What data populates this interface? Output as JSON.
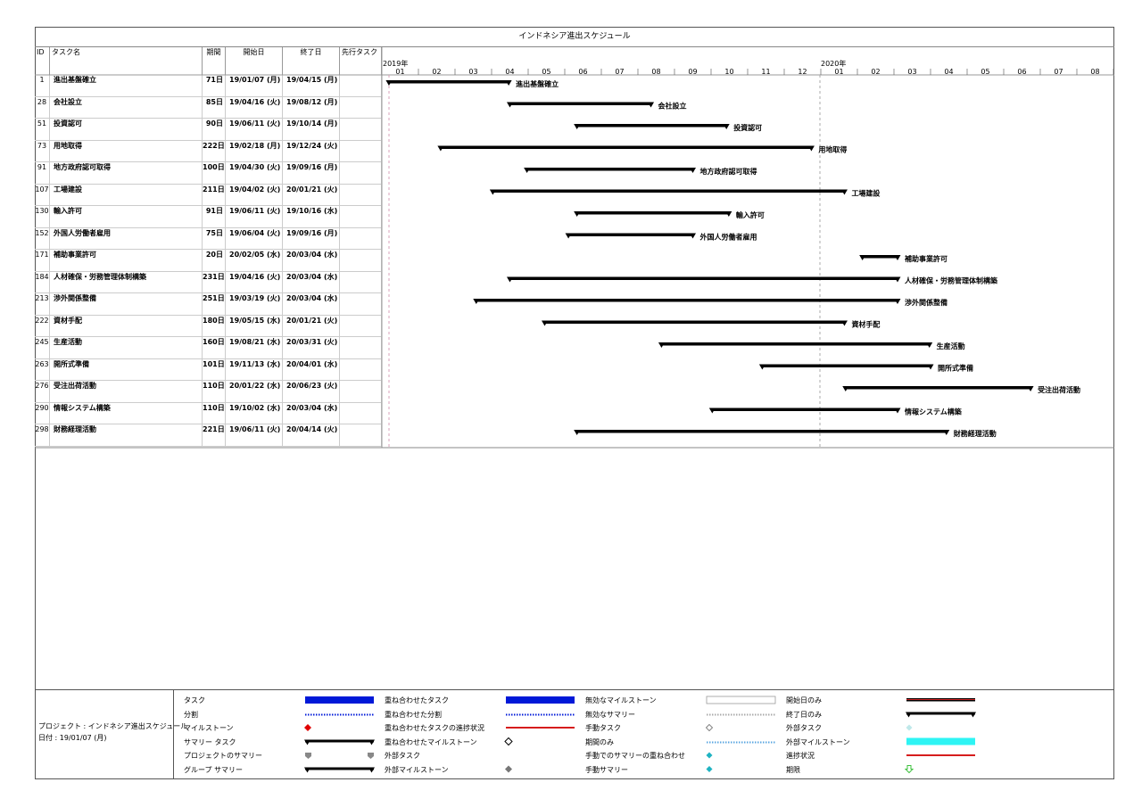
{
  "title": "インドネシア進出スケジュール",
  "headers": {
    "id": "ID",
    "name": "タスク名",
    "duration": "期間",
    "start": "開始日",
    "end": "終了日",
    "predecessor": "先行タスク"
  },
  "timeline": {
    "years": [
      "2019年",
      "2020年"
    ],
    "months": [
      "01",
      "02",
      "03",
      "04",
      "05",
      "06",
      "07",
      "08",
      "09",
      "10",
      "11",
      "12",
      "01",
      "02",
      "03",
      "04",
      "05",
      "06",
      "07",
      "08"
    ]
  },
  "tasks": [
    {
      "id": "1",
      "name": "進出基盤確立",
      "duration": "71日",
      "start": "19/01/07 (月)",
      "end": "19/04/15 (月)",
      "bar_label": "進出基盤確立",
      "start_date": "2019-01-07",
      "end_date": "2019-04-15"
    },
    {
      "id": "28",
      "name": "会社設立",
      "duration": "85日",
      "start": "19/04/16 (火)",
      "end": "19/08/12 (月)",
      "bar_label": "会社設立",
      "start_date": "2019-04-16",
      "end_date": "2019-08-12"
    },
    {
      "id": "51",
      "name": "投資認可",
      "duration": "90日",
      "start": "19/06/11 (火)",
      "end": "19/10/14 (月)",
      "bar_label": "投資認可",
      "start_date": "2019-06-11",
      "end_date": "2019-10-14"
    },
    {
      "id": "73",
      "name": "用地取得",
      "duration": "222日",
      "start": "19/02/18 (月)",
      "end": "19/12/24 (火)",
      "bar_label": "用地取得",
      "start_date": "2019-02-18",
      "end_date": "2019-12-24"
    },
    {
      "id": "91",
      "name": "地方政府認可取得",
      "duration": "100日",
      "start": "19/04/30 (火)",
      "end": "19/09/16 (月)",
      "bar_label": "地方政府認可取得",
      "start_date": "2019-04-30",
      "end_date": "2019-09-16"
    },
    {
      "id": "107",
      "name": "工場建設",
      "duration": "211日",
      "start": "19/04/02 (火)",
      "end": "20/01/21 (火)",
      "bar_label": "工場建設",
      "start_date": "2019-04-02",
      "end_date": "2020-01-21"
    },
    {
      "id": "130",
      "name": "輸入許可",
      "duration": "91日",
      "start": "19/06/11 (火)",
      "end": "19/10/16 (水)",
      "bar_label": "輸入許可",
      "start_date": "2019-06-11",
      "end_date": "2019-10-16"
    },
    {
      "id": "152",
      "name": "外国人労働者雇用",
      "duration": "75日",
      "start": "19/06/04 (火)",
      "end": "19/09/16 (月)",
      "bar_label": "外国人労働者雇用",
      "start_date": "2019-06-04",
      "end_date": "2019-09-16"
    },
    {
      "id": "171",
      "name": "補助事業許可",
      "duration": "20日",
      "start": "20/02/05 (水)",
      "end": "20/03/04 (水)",
      "bar_label": "補助事業許可",
      "start_date": "2020-02-05",
      "end_date": "2020-03-04"
    },
    {
      "id": "184",
      "name": "人材確保・労務管理体制構築",
      "duration": "231日",
      "start": "19/04/16 (火)",
      "end": "20/03/04 (水)",
      "bar_label": "人材確保・労務管理体制構築",
      "start_date": "2019-04-16",
      "end_date": "2020-03-04"
    },
    {
      "id": "213",
      "name": "渉外関係整備",
      "duration": "251日",
      "start": "19/03/19 (火)",
      "end": "20/03/04 (水)",
      "bar_label": "渉外関係整備",
      "start_date": "2019-03-19",
      "end_date": "2020-03-04"
    },
    {
      "id": "222",
      "name": "資材手配",
      "duration": "180日",
      "start": "19/05/15 (水)",
      "end": "20/01/21 (火)",
      "bar_label": "資材手配",
      "start_date": "2019-05-15",
      "end_date": "2020-01-21"
    },
    {
      "id": "245",
      "name": "生産活動",
      "duration": "160日",
      "start": "19/08/21 (水)",
      "end": "20/03/31 (火)",
      "bar_label": "生産活動",
      "start_date": "2019-08-21",
      "end_date": "2020-03-31"
    },
    {
      "id": "263",
      "name": "開所式準備",
      "duration": "101日",
      "start": "19/11/13 (水)",
      "end": "20/04/01 (水)",
      "bar_label": "開所式準備",
      "start_date": "2019-11-13",
      "end_date": "2020-04-01"
    },
    {
      "id": "276",
      "name": "受注出荷活動",
      "duration": "110日",
      "start": "20/01/22 (水)",
      "end": "20/06/23 (火)",
      "bar_label": "受注出荷活動",
      "start_date": "2020-01-22",
      "end_date": "2020-06-23"
    },
    {
      "id": "290",
      "name": "情報システム構築",
      "duration": "110日",
      "start": "19/10/02 (水)",
      "end": "20/03/04 (水)",
      "bar_label": "情報システム構築",
      "start_date": "2019-10-02",
      "end_date": "2020-03-04"
    },
    {
      "id": "298",
      "name": "財務経理活動",
      "duration": "221日",
      "start": "19/06/11 (火)",
      "end": "20/04/14 (火)",
      "bar_label": "財務経理活動",
      "start_date": "2019-06-11",
      "end_date": "2020-04-14"
    }
  ],
  "legend": {
    "project": "プロジェクト : インドネシア進出スケジュール",
    "date": "日付 : 19/01/07 (月)",
    "columns": [
      [
        {
          "label": "タスク",
          "sym": "task"
        },
        {
          "label": "分割",
          "sym": "split"
        },
        {
          "label": "マイルストーン",
          "sym": "milestone"
        },
        {
          "label": "サマリー タスク",
          "sym": "summary"
        },
        {
          "label": "プロジェクトのサマリー",
          "sym": "project-summary"
        },
        {
          "label": "グループ サマリー",
          "sym": "summary"
        }
      ],
      [
        {
          "label": "重ね合わせたタスク",
          "sym": "task"
        },
        {
          "label": "重ね合わせた分割",
          "sym": "split"
        },
        {
          "label": "重ね合わせたタスクの進捗状況",
          "sym": "red-line"
        },
        {
          "label": "重ね合わせたマイルストーン",
          "sym": "hollow-diamond"
        },
        {
          "label": "外部タスク",
          "sym": "none"
        },
        {
          "label": "外部マイルストーン",
          "sym": "gray-diamond"
        }
      ],
      [
        {
          "label": "無効なマイルストーン",
          "sym": "hollow-box"
        },
        {
          "label": "無効なサマリー",
          "sym": "gray-dots"
        },
        {
          "label": "手動タスク",
          "sym": "small-hollow-diamond"
        },
        {
          "label": "期間のみ",
          "sym": "blue-dots"
        },
        {
          "label": "手動でのサマリーの重ね合わせ",
          "sym": "teal-diamond"
        },
        {
          "label": "手動サマリー",
          "sym": "teal-diamond"
        }
      ],
      [
        {
          "label": "開始日のみ",
          "sym": "start-only"
        },
        {
          "label": "終了日のみ",
          "sym": "end-only"
        },
        {
          "label": "外部タスク",
          "sym": "light-diamond"
        },
        {
          "label": "外部マイルストーン",
          "sym": "cyan-bar"
        },
        {
          "label": "進捗状況",
          "sym": "red-line"
        },
        {
          "label": "期限",
          "sym": "green-arrow"
        }
      ]
    ]
  },
  "colors": {
    "task_blue": "#0019d8",
    "summary_black": "#000000",
    "progress_red": "#d61c1c",
    "milestone_red": "#e00000",
    "cyan": "#2ef4f4",
    "teal": "#1fb3c2",
    "deadline_green": "#3ec13e"
  }
}
